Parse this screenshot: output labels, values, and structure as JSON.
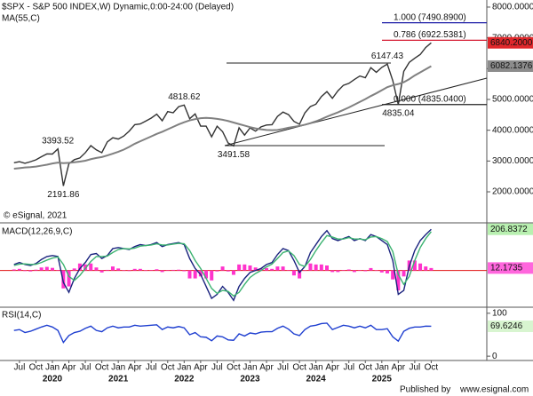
{
  "chart_data": [
    {
      "type": "line",
      "title": "$SPX - S&P 500 INDEX,W) Dynamic,0:00-24:00 (Delayed)",
      "copyright": "© eSignal, 2021",
      "categories": [
        null,
        "Jul",
        null,
        null,
        "Oct",
        null,
        null,
        "Jan",
        null,
        null,
        "Apr",
        null,
        null,
        "Jul",
        null,
        null,
        "Oct",
        null,
        null,
        "Jan",
        null,
        null,
        "Apr",
        null,
        null,
        "Jul",
        null,
        null,
        "Oct",
        null,
        null,
        "Jan",
        null,
        null,
        "Apr",
        null,
        null,
        "Jul",
        null,
        null,
        "Oct",
        null,
        null,
        "Jan",
        null,
        null,
        "Apr",
        null,
        null,
        "Jul",
        null,
        null,
        "Oct",
        null,
        null,
        "Jan",
        null,
        null,
        "Apr",
        null,
        null,
        "Jul",
        null,
        null,
        "Oct",
        null,
        null,
        "Jan",
        null,
        null,
        "Apr",
        null,
        null,
        "Jul",
        null,
        null,
        "Oct"
      ],
      "year_labels": [
        "2020",
        "2021",
        "2022",
        "2023",
        "2024",
        "2025"
      ],
      "ylim": [
        1020,
        8230
      ],
      "yticks": [
        {
          "value": 2000,
          "label": "2000.0000"
        },
        {
          "value": 3000,
          "label": "3000.0000"
        },
        {
          "value": 4000,
          "label": "4000.0000"
        },
        {
          "value": 5000,
          "label": "5000.0000"
        },
        {
          "value": 6000,
          "label": "6000.0000"
        },
        {
          "value": 7000,
          "label": "7000.0000"
        },
        {
          "value": 8000,
          "label": "8000.0000"
        }
      ],
      "fib_levels": [
        {
          "label": "1.000 (7490.8900)",
          "value": 7490.89,
          "color": "#1a1aa6"
        },
        {
          "label": "0.786 (6922.5381)",
          "value": 6922.5381,
          "color": "#d0021b"
        },
        {
          "label": "0.000 (4835.0400)",
          "value": 4835.04,
          "color": "#222222"
        }
      ],
      "series": [
        {
          "color": "#333333",
          "tag_color": "#e0282c",
          "tag_text_color": "#ffffff",
          "last_label": "6840.2000",
          "values": [
            2942,
            2980,
            2926,
            2977,
            3038,
            3141,
            3231,
            3226,
            3393.52,
            2191.86,
            2912,
            3044,
            3100,
            3271,
            3500,
            3363,
            3270,
            3622,
            3756,
            3714,
            3811,
            3973,
            4181,
            4204,
            4298,
            4395,
            4523,
            4308,
            4605,
            4567,
            4766,
            4818.62,
            4374,
            4530,
            4132,
            4132,
            3785,
            4130,
            3955,
            3586,
            3491.58,
            4080,
            3840,
            4077,
            3970,
            4109,
            4169,
            4180,
            4450,
            4589,
            4508,
            4288,
            4194,
            4568,
            4770,
            4846,
            5096,
            5254,
            5036,
            5278,
            5460,
            5522,
            5648,
            5762,
            5705,
            6032,
            5882,
            6041,
            6147.43,
            5612,
            4835.04,
            5912,
            6205,
            6339,
            6460,
            6688,
            6840.2
          ],
          "value_labels": [
            null,
            null,
            null,
            null,
            null,
            null,
            null,
            null,
            "3393.52",
            "2191.86",
            null,
            null,
            null,
            null,
            null,
            null,
            null,
            null,
            null,
            null,
            null,
            null,
            null,
            null,
            null,
            null,
            null,
            null,
            null,
            null,
            null,
            "4818.62",
            null,
            null,
            null,
            null,
            null,
            null,
            null,
            null,
            "3491.58",
            null,
            null,
            null,
            null,
            null,
            null,
            null,
            null,
            null,
            null,
            null,
            null,
            null,
            null,
            null,
            null,
            null,
            null,
            null,
            null,
            null,
            null,
            null,
            null,
            null,
            null,
            null,
            "6147.43",
            null,
            "4835.04",
            null,
            null,
            null,
            null,
            null,
            null
          ]
        },
        {
          "name": "MA(55,C)",
          "color": "#808080",
          "tag_color": "#8c8c8c",
          "tag_text_color": "#ffffff",
          "last_label": "6082.1376",
          "values": [
            2750,
            2770,
            2790,
            2800,
            2820,
            2850,
            2880,
            2920,
            2950,
            2930,
            2940,
            2960,
            2980,
            3010,
            3060,
            3100,
            3130,
            3180,
            3240,
            3300,
            3370,
            3460,
            3560,
            3640,
            3720,
            3800,
            3880,
            3950,
            4030,
            4110,
            4190,
            4260,
            4320,
            4360,
            4390,
            4400,
            4390,
            4370,
            4340,
            4300,
            4250,
            4200,
            4150,
            4100,
            4060,
            4030,
            4010,
            4000,
            4010,
            4040,
            4080,
            4110,
            4140,
            4180,
            4230,
            4290,
            4360,
            4440,
            4510,
            4580,
            4660,
            4740,
            4830,
            4920,
            5010,
            5110,
            5200,
            5300,
            5400,
            5460,
            5500,
            5560,
            5660,
            5780,
            5880,
            5980,
            6082.1376
          ]
        }
      ]
    },
    {
      "type": "line",
      "title": "MACD(12,26,9,C)",
      "ylim": [
        -180,
        230
      ],
      "series": [
        {
          "kind": "bar",
          "color": "#ff33cc",
          "tag_color": "#ff66dd",
          "tag_text_color": "#111111",
          "last_label": "12.1735",
          "values": [
            5,
            8,
            -3,
            -5,
            4,
            15,
            18,
            13,
            2,
            -90,
            -80,
            10,
            35,
            30,
            35,
            15,
            -10,
            3,
            20,
            10,
            0,
            -3,
            8,
            8,
            0,
            2,
            6,
            -8,
            2,
            3,
            4,
            -4,
            -40,
            -40,
            -30,
            -40,
            -50,
            -5,
            20,
            -5,
            -22,
            30,
            30,
            25,
            15,
            10,
            12,
            8,
            20,
            20,
            2,
            -25,
            -40,
            0,
            35,
            30,
            30,
            25,
            -8,
            -8,
            2,
            5,
            -8,
            2,
            -4,
            12,
            0,
            -10,
            -15,
            -45,
            -100,
            -30,
            50,
            50,
            35,
            20,
            12.1735
          ]
        },
        {
          "color": "#1a237e",
          "tag_color": "#b8f0b0",
          "tag_text_color": "#111111",
          "last_label": "206.8372",
          "values": [
            30,
            40,
            30,
            25,
            35,
            55,
            70,
            75,
            70,
            -60,
            -110,
            -40,
            10,
            40,
            80,
            85,
            60,
            75,
            110,
            115,
            110,
            105,
            120,
            130,
            125,
            130,
            140,
            120,
            130,
            135,
            140,
            130,
            60,
            10,
            -20,
            -80,
            -140,
            -120,
            -80,
            -110,
            -150,
            -80,
            -40,
            -10,
            0,
            10,
            30,
            40,
            80,
            110,
            100,
            50,
            -10,
            20,
            90,
            130,
            170,
            200,
            160,
            150,
            160,
            170,
            150,
            160,
            150,
            180,
            170,
            150,
            130,
            50,
            -120,
            -100,
            20,
            100,
            150,
            180,
            206.8372
          ]
        },
        {
          "color": "#3cb371",
          "values": [
            25,
            32,
            33,
            30,
            31,
            40,
            52,
            62,
            68,
            30,
            -30,
            -50,
            -25,
            10,
            45,
            70,
            70,
            72,
            90,
            105,
            110,
            108,
            112,
            122,
            125,
            128,
            134,
            128,
            128,
            132,
            136,
            134,
            100,
            50,
            10,
            -40,
            -90,
            -115,
            -100,
            -105,
            -128,
            -110,
            -70,
            -35,
            -15,
            0,
            18,
            32,
            60,
            90,
            98,
            75,
            30,
            20,
            55,
            100,
            140,
            175,
            168,
            158,
            158,
            165,
            158,
            158,
            154,
            168,
            170,
            160,
            145,
            95,
            -20,
            -70,
            -30,
            50,
            115,
            160,
            194.6637
          ]
        }
      ]
    },
    {
      "type": "line",
      "title": "RSI(14,C)",
      "ylim": [
        -8,
        112
      ],
      "yticks": [
        0,
        100
      ],
      "series": [
        {
          "color": "#1f3fd0",
          "tag_color": "#d8f5d0",
          "tag_text_color": "#111111",
          "last_label": "69.6246",
          "values": [
            60,
            62,
            55,
            58,
            63,
            68,
            72,
            68,
            60,
            32,
            48,
            55,
            58,
            65,
            70,
            60,
            57,
            66,
            70,
            66,
            68,
            68,
            72,
            70,
            71,
            72,
            73,
            62,
            68,
            66,
            69,
            66,
            50,
            55,
            45,
            44,
            36,
            47,
            45,
            38,
            37,
            52,
            47,
            54,
            52,
            56,
            57,
            57,
            65,
            70,
            63,
            52,
            48,
            62,
            70,
            72,
            76,
            77,
            62,
            67,
            72,
            70,
            66,
            70,
            66,
            72,
            62,
            62,
            64,
            45,
            35,
            58,
            65,
            68,
            68,
            70,
            69.6246
          ]
        }
      ]
    }
  ],
  "footer": {
    "published": "Published by",
    "site": "www.esignal.com"
  }
}
